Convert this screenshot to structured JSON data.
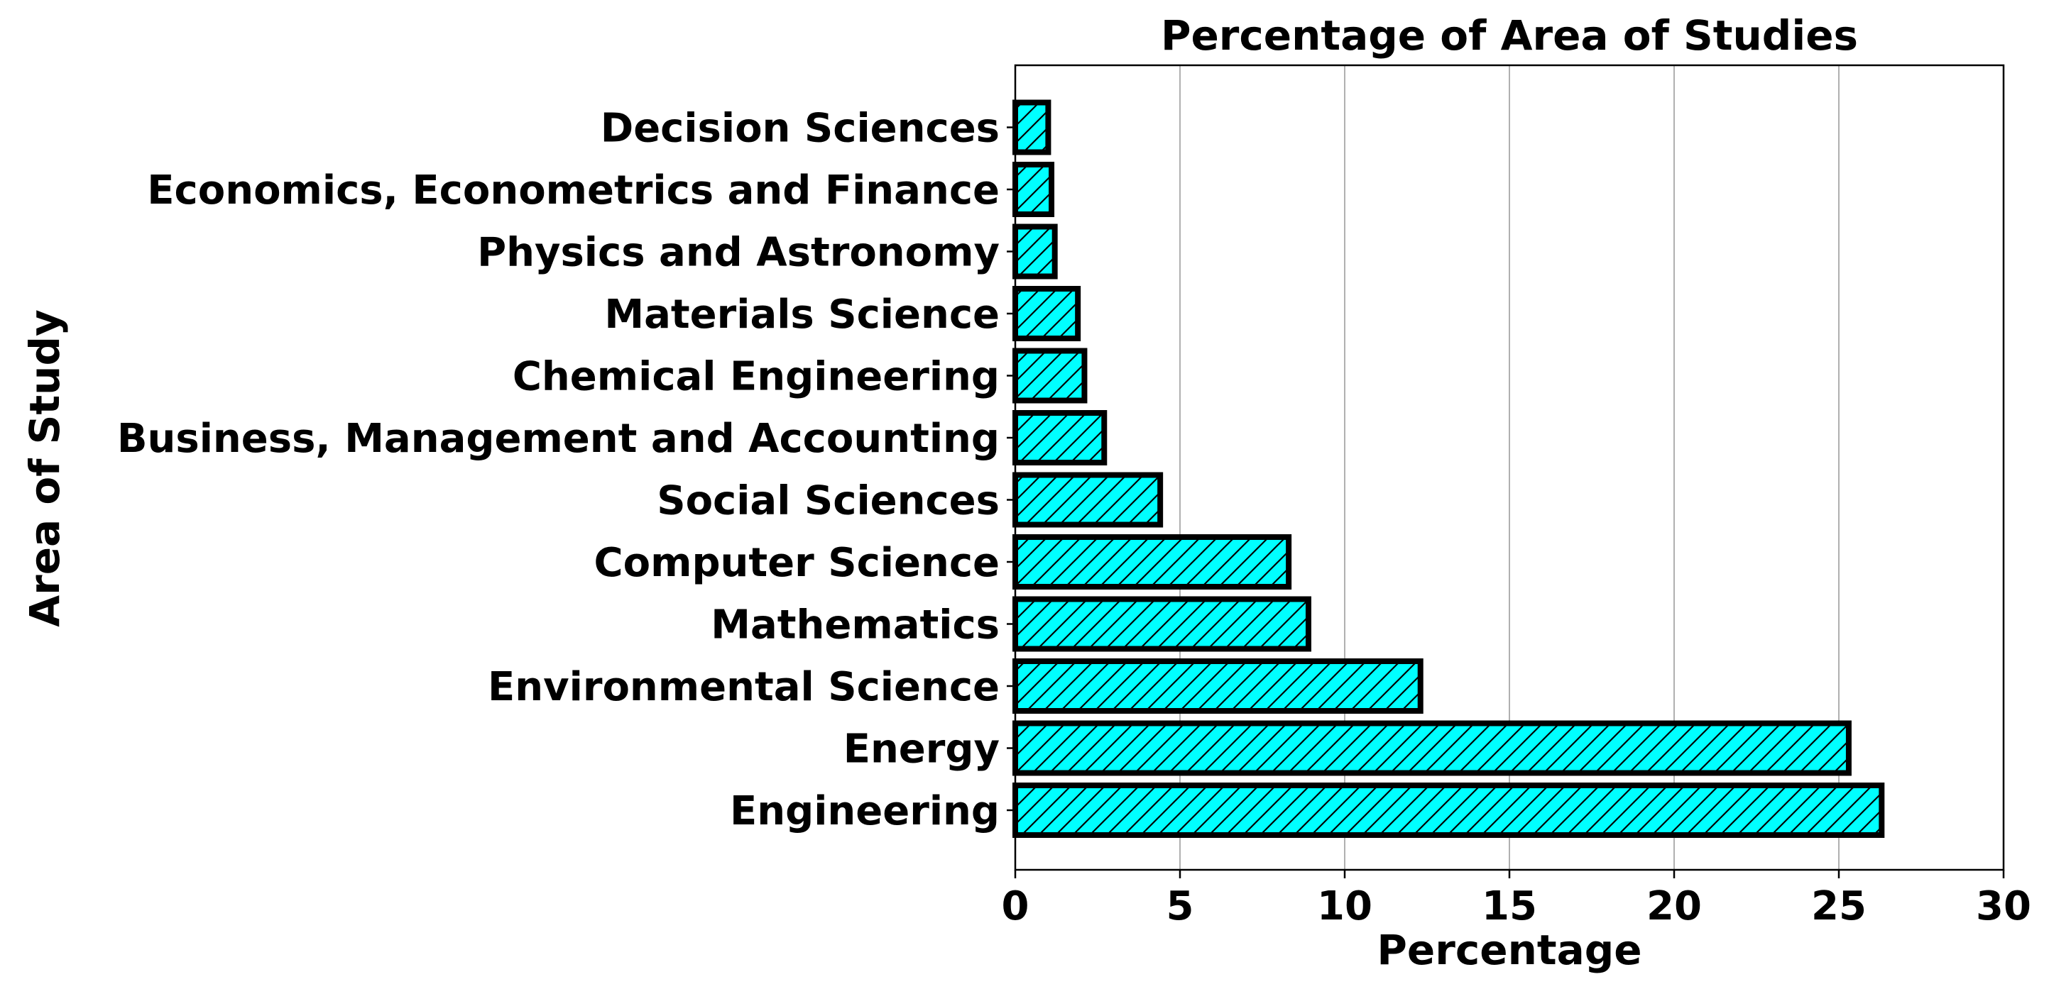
{
  "chart_data": {
    "type": "bar",
    "orientation": "horizontal",
    "title": "Percentage of Area of Studies",
    "xlabel": "Percentage",
    "ylabel": "Area of Study",
    "categories": [
      "Engineering",
      "Energy",
      "Environmental Science",
      "Mathematics",
      "Computer Science",
      "Social Sciences",
      "Business, Management and Accounting",
      "Chemical Engineering",
      "Materials Science",
      "Physics and Astronomy",
      "Economics, Econometrics and Finance",
      "Decision Sciences"
    ],
    "values": [
      26.3,
      25.3,
      12.3,
      8.9,
      8.3,
      4.4,
      2.7,
      2.1,
      1.9,
      1.2,
      1.1,
      1.0
    ],
    "xlim": [
      0,
      30
    ],
    "xticks": [
      0,
      5,
      10,
      15,
      20,
      25,
      30
    ],
    "xgrid": true,
    "ygrid": false,
    "bar_color": "#00ffff",
    "bar_edge_color": "#000000",
    "bar_hatch": "diagonal"
  }
}
